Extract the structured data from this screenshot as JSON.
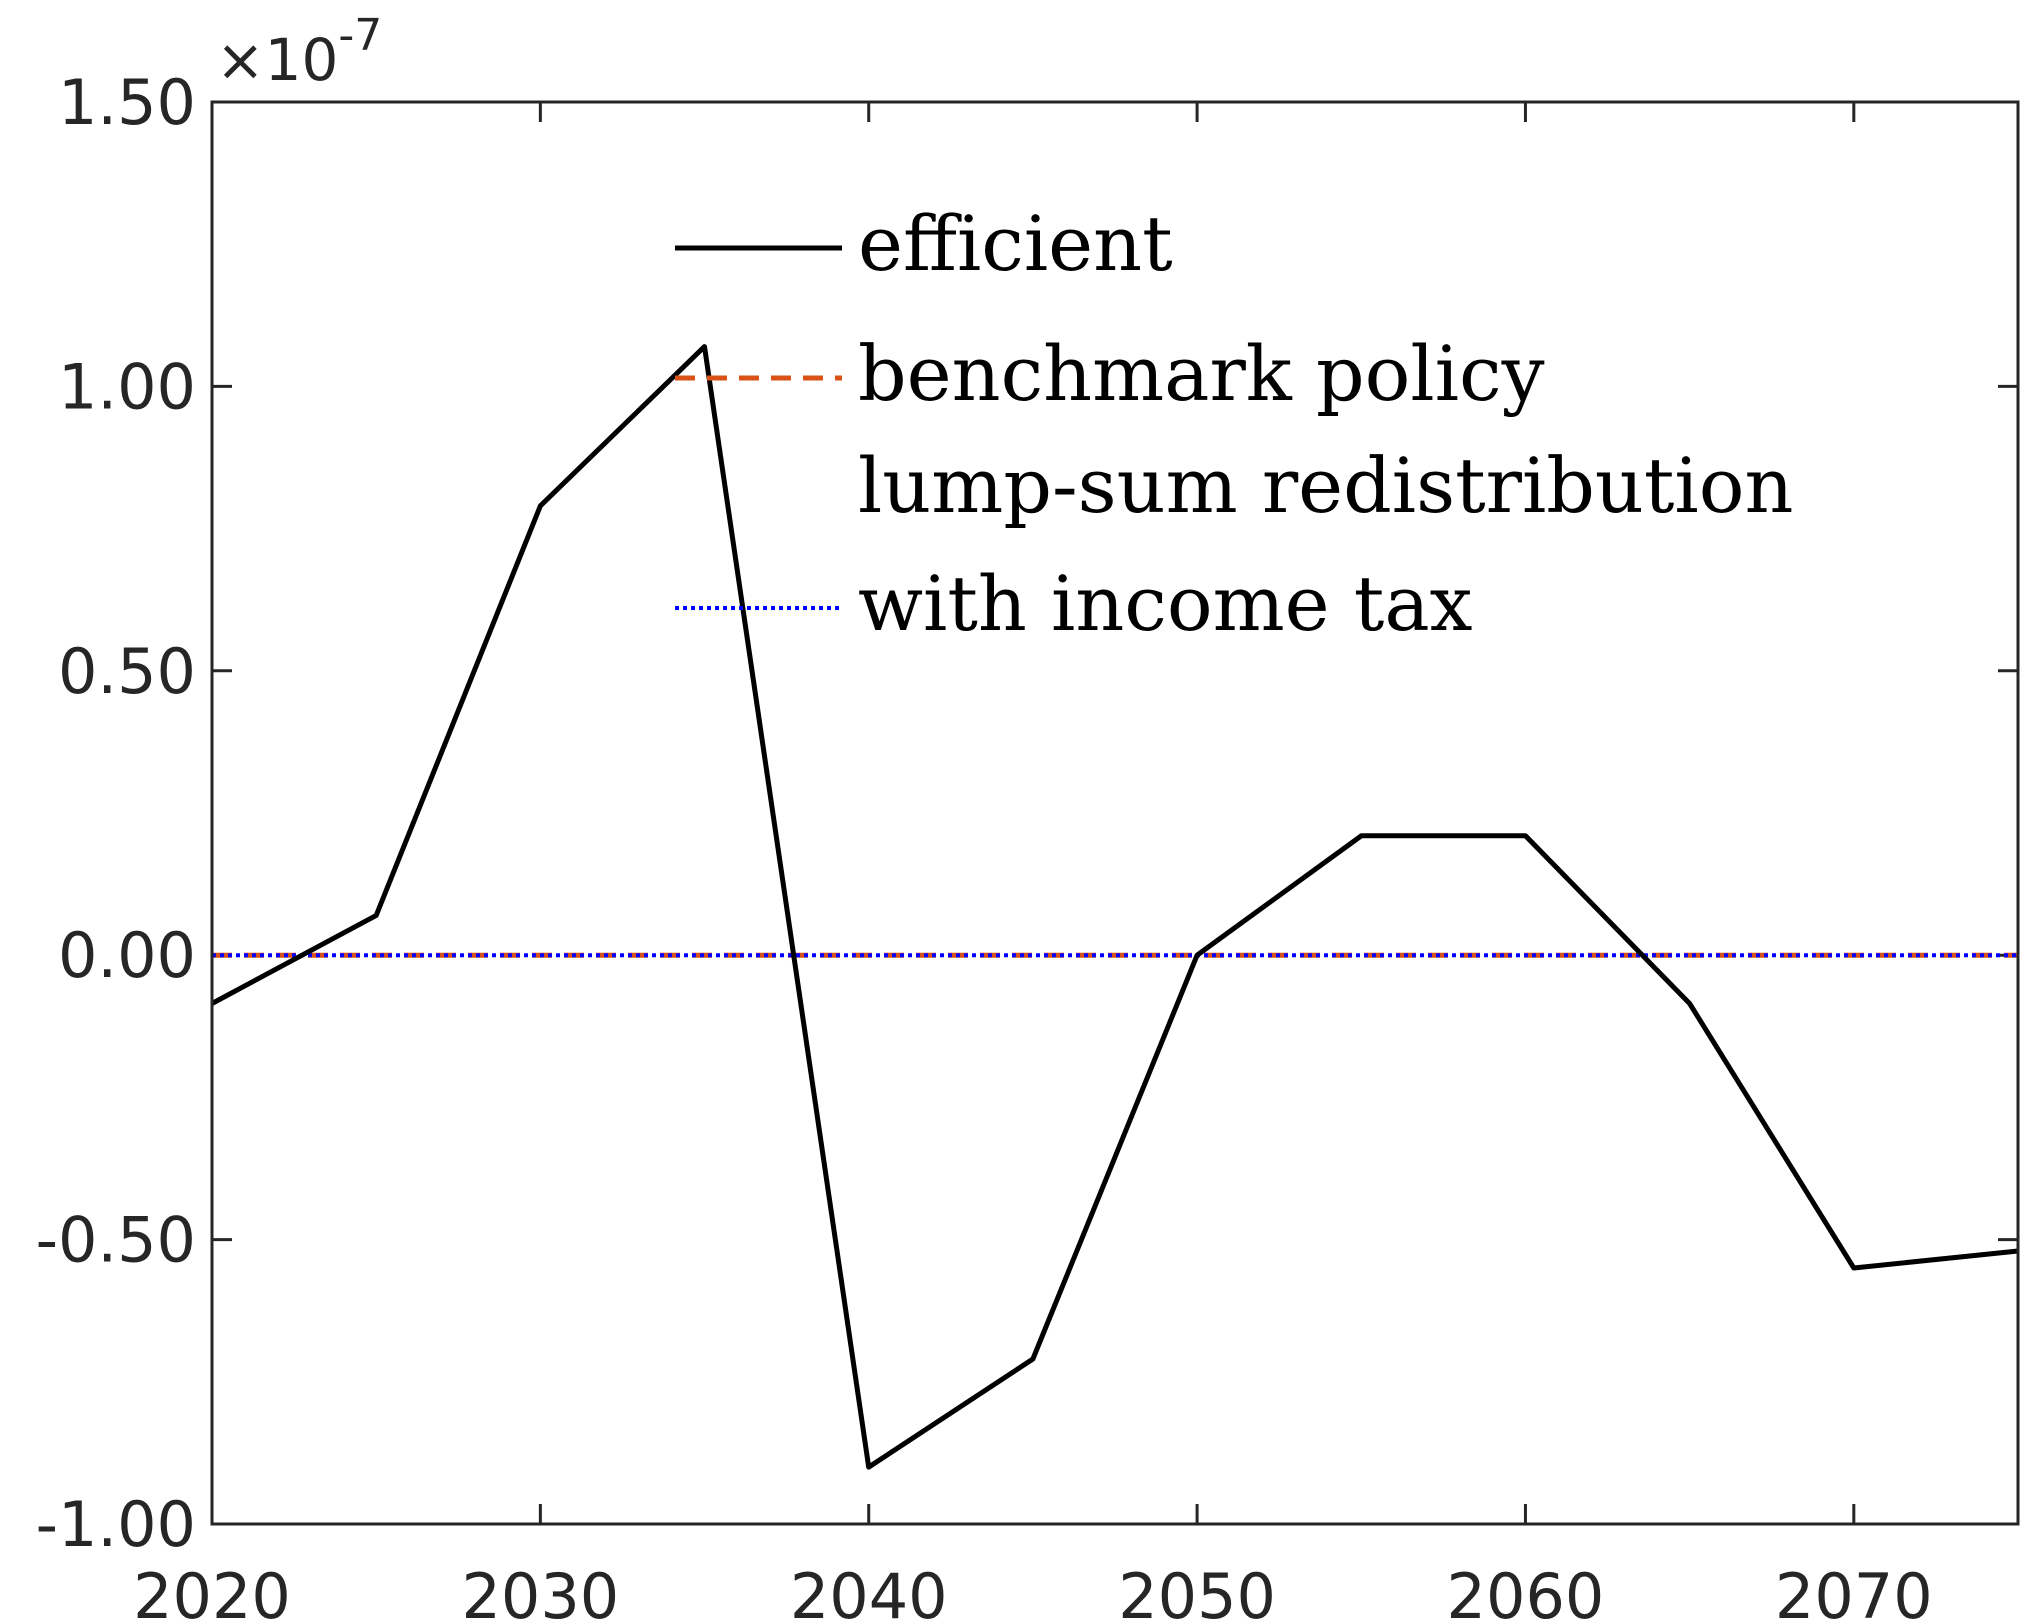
{
  "chart_data": {
    "type": "line",
    "x": [
      2020,
      2025,
      2030,
      2035,
      2040,
      2045,
      2050,
      2055,
      2060,
      2065,
      2070,
      2075
    ],
    "series": [
      {
        "name": "efficient",
        "color": "#000000",
        "style": "solid",
        "values": [
          -0.085,
          0.07,
          0.79,
          1.07,
          -0.9,
          -0.71,
          0.0,
          0.21,
          0.21,
          -0.085,
          -0.55,
          -0.52
        ]
      },
      {
        "name": "benchmark policy",
        "color": "#D95319",
        "style": "dashed",
        "values": [
          0,
          0,
          0,
          0,
          0,
          0,
          0,
          0,
          0,
          0,
          0,
          0
        ]
      },
      {
        "name": "lump-sum redistribution",
        "color": "#D95319",
        "style": "none",
        "values": [
          0,
          0,
          0,
          0,
          0,
          0,
          0,
          0,
          0,
          0,
          0,
          0
        ]
      },
      {
        "name": "with income tax",
        "color": "#0000FF",
        "style": "dotted",
        "values": [
          0,
          0,
          0,
          0,
          0,
          0,
          0,
          0,
          0,
          0,
          0,
          0
        ]
      }
    ],
    "xlim": [
      2020,
      2075
    ],
    "ylim": [
      -1.0,
      1.5
    ],
    "x_ticks": [
      2020,
      2030,
      2040,
      2050,
      2060,
      2070
    ],
    "x_tick_labels": [
      "2020",
      "2030",
      "2040",
      "2050",
      "2060",
      "2070"
    ],
    "y_ticks": [
      -1.0,
      -0.5,
      0.0,
      0.5,
      1.0,
      1.5
    ],
    "y_tick_labels": [
      "-1.00",
      "-0.50",
      "0.00",
      "0.50",
      "1.00",
      "1.50"
    ],
    "y_multiplier_base": "×10",
    "y_multiplier_exp": "-7",
    "grid": false,
    "legend_placement": "top-center"
  }
}
